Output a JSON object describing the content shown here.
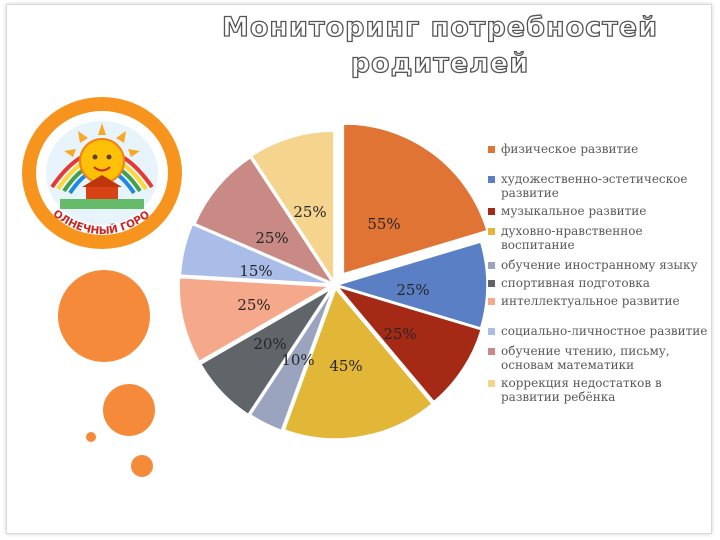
{
  "title": "Мониторинг потребностей родителей",
  "logo": {
    "caption": "\"СОЛНЕЧНЫЙ ГОРОД\""
  },
  "chart_data": {
    "type": "pie",
    "title": "Мониторинг потребностей родителей",
    "categories": [
      "физическое развитие",
      "художественно-эстетическое развитие",
      "музыкальное развитие",
      "духовно-нравственное воспитание",
      "обучение иностранному языку",
      "спортивная подготовка",
      "интеллектуальное развитие",
      "социально-личностное развитие",
      "обучение чтению, письму, основам математики",
      "коррекция недостатков в развитии ребёнка"
    ],
    "values": [
      55,
      25,
      25,
      45,
      10,
      20,
      25,
      15,
      25,
      25
    ],
    "labels": [
      "55%",
      "25%",
      "25%",
      "45%",
      "10%",
      "20%",
      "25%",
      "15%",
      "25%",
      "25%"
    ],
    "colors": [
      "#e07434",
      "#5b7fc5",
      "#a52a15",
      "#e2b637",
      "#9aa4bf",
      "#5f6569",
      "#f6a88a",
      "#a9bde8",
      "#c98a85",
      "#f5d48e"
    ],
    "legend_position": "right"
  }
}
